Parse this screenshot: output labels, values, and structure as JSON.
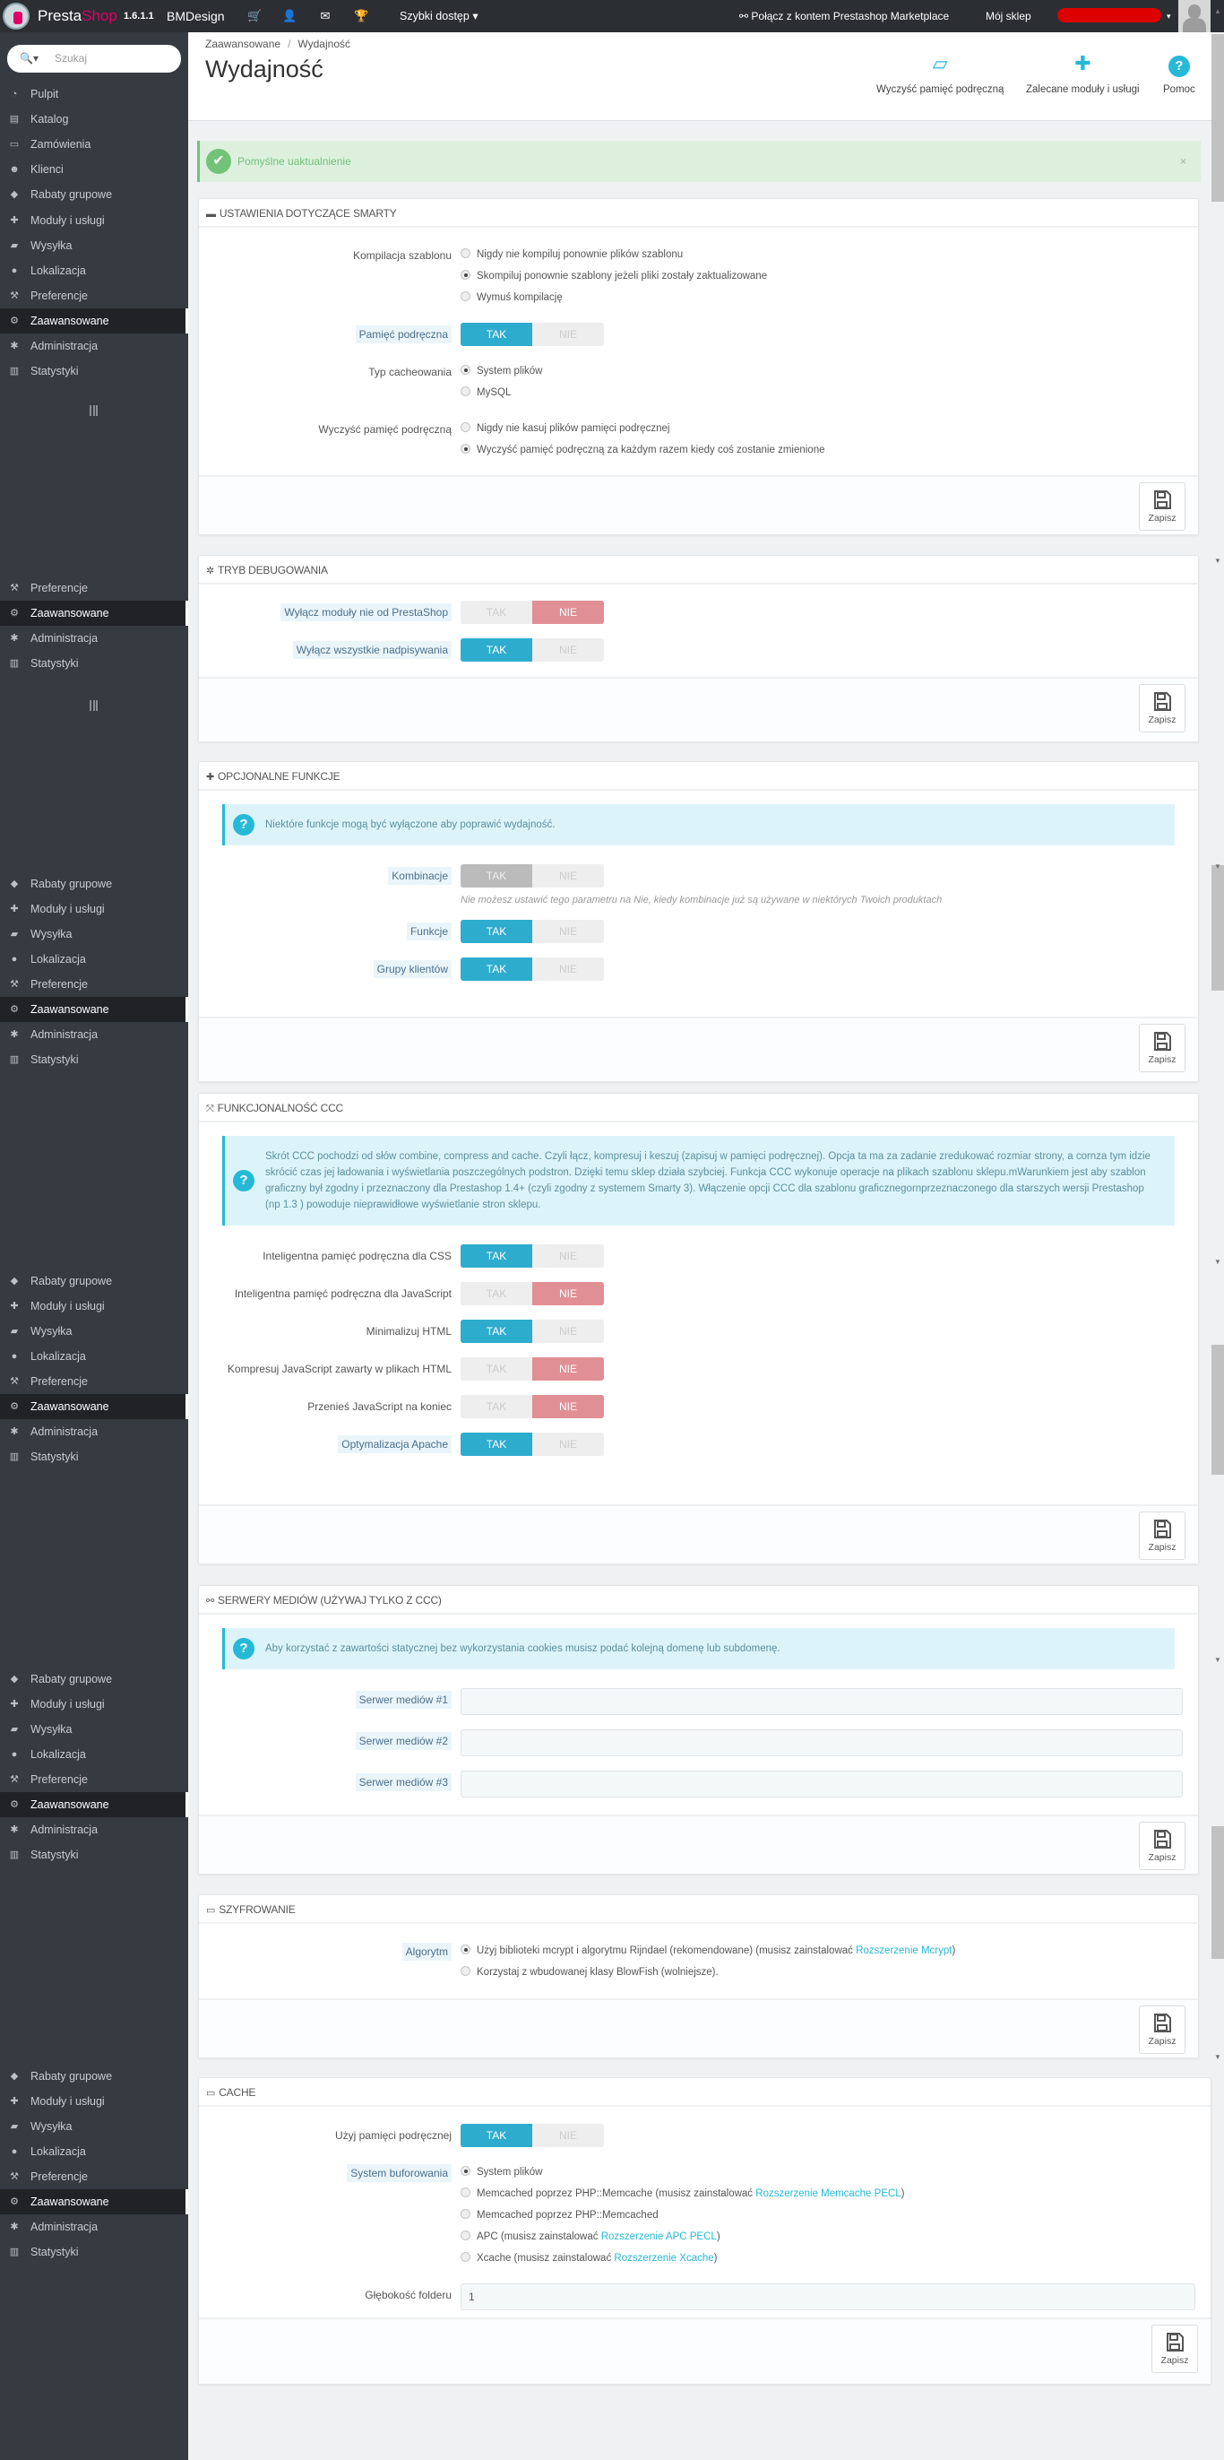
{
  "topbar": {
    "brand_presta": "Presta",
    "brand_shop": "Shop",
    "version": "1.6.1.1",
    "shop_name": "BMDesign",
    "quick_access": "Szybki dostęp",
    "marketplace": "Połącz z kontem Prestashop Marketplace",
    "my_shop": "Mój sklep",
    "icons": [
      "cart-icon",
      "user-icon",
      "envelope-icon",
      "trophy-icon"
    ]
  },
  "sidebar": {
    "search_placeholder": "Szukaj",
    "items": [
      {
        "label": "Pulpit",
        "icon": "dashboard-icon"
      },
      {
        "label": "Katalog",
        "icon": "book-icon"
      },
      {
        "label": "Zamówienia",
        "icon": "credit-card-icon"
      },
      {
        "label": "Klienci",
        "icon": "users-icon"
      },
      {
        "label": "Rabaty grupowe",
        "icon": "tag-icon"
      },
      {
        "label": "Moduły i usługi",
        "icon": "puzzle-icon"
      },
      {
        "label": "Wysyłka",
        "icon": "truck-icon"
      },
      {
        "label": "Lokalizacja",
        "icon": "globe-icon"
      },
      {
        "label": "Preferencje",
        "icon": "wrench-icon"
      },
      {
        "label": "Zaawansowane",
        "icon": "cogs-icon",
        "active": true
      },
      {
        "label": "Administracja",
        "icon": "cog-icon"
      },
      {
        "label": "Statystyki",
        "icon": "bar-chart-icon"
      }
    ]
  },
  "header": {
    "breadcrumb": [
      "Zaawansowane",
      "Wydajność"
    ],
    "title": "Wydajność",
    "toolbar": [
      {
        "label": "Wyczyść pamięć podręczną",
        "icon": "eraser-icon"
      },
      {
        "label": "Zalecane moduły i usługi",
        "icon": "puzzle-icon"
      },
      {
        "label": "Pomoc",
        "icon": "help-icon"
      }
    ]
  },
  "alert": {
    "text": "Pomyślne uaktualnienie",
    "close": "×"
  },
  "labels": {
    "yes": "TAK",
    "no": "NIE",
    "save": "Zapisz"
  },
  "accent": {
    "primary": "#2eacce",
    "danger": "#e08f95",
    "success": "#72c279"
  },
  "panels": [
    {
      "title": "Ustawienia dotyczące Smarty",
      "icon": "briefcase-icon",
      "rows": [
        {
          "type": "radio",
          "label": "Kompilacja szablonu",
          "options": [
            {
              "text": "Nigdy nie kompiluj ponownie plików szablonu",
              "checked": false
            },
            {
              "text": "Skompiluj ponownie szablony jeżeli pliki zostały zaktualizowane",
              "checked": true
            },
            {
              "text": "Wymuś kompilację",
              "checked": false
            }
          ]
        },
        {
          "type": "toggle",
          "label": "Pamięć podręczna",
          "tooltip": true,
          "value": "yes"
        },
        {
          "type": "radio",
          "label": "Typ cacheowania",
          "options": [
            {
              "text": "System plików",
              "checked": true
            },
            {
              "text": "MySQL",
              "checked": false
            }
          ]
        },
        {
          "type": "radio",
          "label": "Wyczyść pamięć podręczną",
          "options": [
            {
              "text": "Nigdy nie kasuj plików pamięci podręcznej",
              "checked": false
            },
            {
              "text": "Wyczyść pamięć podręczną za każdym razem kiedy coś zostanie zmienione",
              "checked": true
            }
          ]
        }
      ]
    },
    {
      "title": "Tryb debugowania",
      "icon": "bug-icon",
      "rows": [
        {
          "type": "toggle",
          "label": "Wyłącz moduły nie od PrestaShop",
          "tooltip": true,
          "value": "no"
        },
        {
          "type": "toggle",
          "label": "Wyłącz wszystkie nadpisywania",
          "tooltip": true,
          "value": "yes"
        }
      ]
    },
    {
      "title": "Opcjonalne funkcje",
      "icon": "puzzle-icon",
      "rows": [
        {
          "type": "info",
          "text": "Niektóre funkcje mogą być wyłączone aby poprawić wydajność."
        },
        {
          "type": "toggle",
          "label": "Kombinacje",
          "tooltip": true,
          "value": "yes",
          "disabled": true,
          "hint": "Nie możesz ustawić tego parametru na Nie, kiedy kombinacje już są używane w niektórych Twoich produktach"
        },
        {
          "type": "toggle",
          "label": "Funkcje",
          "tooltip": true,
          "value": "yes"
        },
        {
          "type": "toggle",
          "label": "Grupy klientów",
          "tooltip": true,
          "value": "yes"
        }
      ]
    },
    {
      "title": "Funkcjonalność CCC",
      "icon": "fullscreen-icon",
      "rows": [
        {
          "type": "info",
          "text": "Skrót CCC pochodzi od słów combine, compress and cache. Czyli łącz, kompresuj i keszuj (zapisuj w pamięci podręcznej). Opcja ta ma za zadanie zredukować rozmiar strony, a cornza tym idzie skrócić czas jej ładowania i wyświetlania poszczególnych podstron. Dzięki temu sklep działa szybciej. Funkcja CCC wykonuje operacje na plikach szablonu sklepu.mWarunkiem jest aby szablon graficzny był zgodny i przeznaczony dla Prestashop 1.4+ (czyli zgodny z systemem Smarty 3). Włączenie opcji CCC dla szablonu graficznegornprzeznaczonego dla starszych wersji Prestashop (np 1.3 ) powoduje nieprawidłowe wyświetlanie stron sklepu."
        },
        {
          "type": "toggle",
          "label": "Inteligentna pamięć podręczna dla CSS",
          "value": "yes"
        },
        {
          "type": "toggle",
          "label": "Inteligentna pamięć podręczna dla JavaScript",
          "value": "no"
        },
        {
          "type": "toggle",
          "label": "Minimalizuj HTML",
          "value": "yes"
        },
        {
          "type": "toggle",
          "label": "Kompresuj JavaScript zawarty w plikach HTML",
          "value": "no"
        },
        {
          "type": "toggle",
          "label": "Przenieś JavaScript na koniec",
          "value": "no"
        },
        {
          "type": "toggle",
          "label": "Optymalizacja Apache",
          "tooltip": true,
          "value": "yes"
        }
      ]
    },
    {
      "title": "Serwery mediów (używaj tylko z CCC)",
      "icon": "link-icon",
      "rows": [
        {
          "type": "info",
          "text": "Aby korzystać z zawartości statycznej bez wykorzystania cookies musisz podać kolejną domenę lub subdomenę."
        },
        {
          "type": "input",
          "label": "Serwer mediów #1",
          "tooltip": true,
          "value": ""
        },
        {
          "type": "input",
          "label": "Serwer mediów #2",
          "tooltip": true,
          "value": ""
        },
        {
          "type": "input",
          "label": "Serwer mediów #3",
          "tooltip": true,
          "value": ""
        }
      ]
    },
    {
      "title": "Szyfrowanie",
      "icon": "desktop-icon",
      "rows": [
        {
          "type": "radio",
          "label": "Algorytm",
          "tooltip": true,
          "options": [
            {
              "text": "Użyj biblioteki mcrypt i algorytmu Rijndael (rekomendowane) (musisz zainstalować ",
              "link": "Rozszerzenie Mcrypt",
              "after": ")",
              "checked": true
            },
            {
              "text": "Korzystaj z wbudowanej klasy BlowFish (wolniejsze).",
              "checked": false
            }
          ]
        }
      ]
    },
    {
      "title": "Cache",
      "icon": "desktop-icon",
      "rows": [
        {
          "type": "toggle",
          "label": "Użyj pamięci podręcznej",
          "value": "yes"
        },
        {
          "type": "radio",
          "label": "System buforowania",
          "tooltip": true,
          "options": [
            {
              "text": "System plików",
              "checked": true
            },
            {
              "text": "Memcached poprzez PHP::Memcache (musisz zainstalować ",
              "link": "Rozszerzenie Memcache PECL",
              "after": ")",
              "checked": false
            },
            {
              "text": "Memcached poprzez PHP::Memcached",
              "checked": false
            },
            {
              "text": "APC (musisz zainstalować ",
              "link": "Rozszerzenie APC PECL",
              "after": ")",
              "checked": false
            },
            {
              "text": "Xcache (musisz zainstalować ",
              "link": "Rozszerzenie Xcache",
              "after": ")",
              "checked": false
            }
          ]
        },
        {
          "type": "input",
          "label": "Głębokość folderu",
          "value": "1"
        }
      ]
    }
  ]
}
